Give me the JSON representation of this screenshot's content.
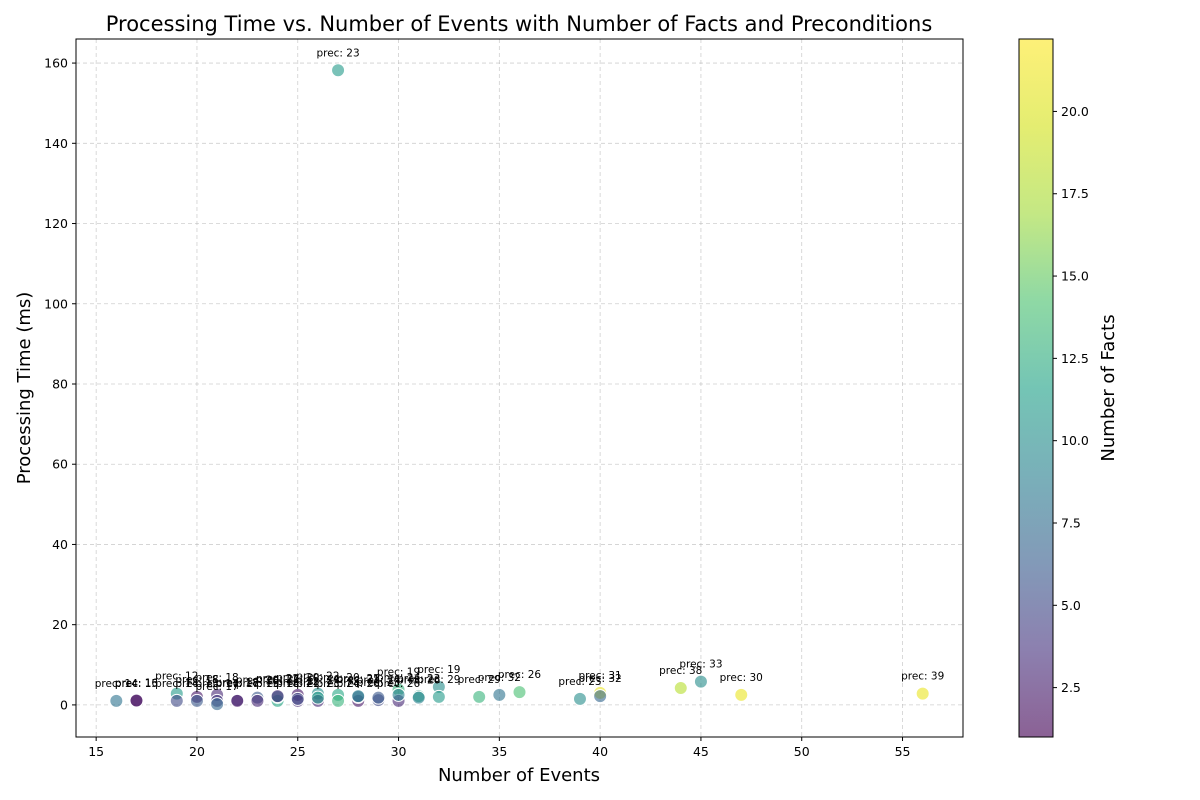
{
  "chart_data": {
    "type": "scatter",
    "title": "Processing Time vs. Number of Events with Number of Facts and Preconditions",
    "xlabel": "Number of Events",
    "ylabel": "Processing Time (ms)",
    "xlim": [
      14,
      58
    ],
    "ylim": [
      -8,
      166
    ],
    "xticks": [
      15,
      20,
      25,
      30,
      35,
      40,
      45,
      50,
      55
    ],
    "yticks": [
      0,
      20,
      40,
      60,
      80,
      100,
      120,
      140,
      160
    ],
    "grid": true,
    "colorbar": {
      "label": "Number of Facts",
      "min": 1,
      "max": 22.2,
      "ticks": [
        2.5,
        5.0,
        7.5,
        10.0,
        12.5,
        15.0,
        17.5,
        20.0
      ],
      "tick_labels": [
        "2.5",
        "5.0",
        "7.5",
        "10.0",
        "12.5",
        "15.0",
        "17.5",
        "20.0"
      ],
      "colormap": "viridis"
    },
    "label_prefix": "prec: ",
    "points": [
      {
        "x": 16,
        "y": 1.0,
        "facts": 8,
        "prec": 14
      },
      {
        "x": 17,
        "y": 1.0,
        "facts": 1,
        "prec": 15
      },
      {
        "x": 17,
        "y": 1.1,
        "facts": 2,
        "prec": 16
      },
      {
        "x": 19,
        "y": 2.8,
        "facts": 11,
        "prec": 12
      },
      {
        "x": 19,
        "y": 1.0,
        "facts": 5,
        "prec": 14
      },
      {
        "x": 20,
        "y": 2.0,
        "facts": 2,
        "prec": 18
      },
      {
        "x": 20,
        "y": 1.0,
        "facts": 6,
        "prec": 15
      },
      {
        "x": 21,
        "y": 2.5,
        "facts": 3,
        "prec": 18
      },
      {
        "x": 21,
        "y": 1.0,
        "facts": 4,
        "prec": 17
      },
      {
        "x": 21,
        "y": 0.2,
        "facts": 7,
        "prec": 17
      },
      {
        "x": 22,
        "y": 1.2,
        "facts": 4,
        "prec": 18
      },
      {
        "x": 22,
        "y": 1.0,
        "facts": 2,
        "prec": 17
      },
      {
        "x": 23,
        "y": 1.8,
        "facts": 6,
        "prec": 20
      },
      {
        "x": 23,
        "y": 1.0,
        "facts": 3,
        "prec": 19
      },
      {
        "x": 24,
        "y": 1.0,
        "facts": 12,
        "prec": 18
      },
      {
        "x": 24,
        "y": 2.0,
        "facts": 9,
        "prec": 21
      },
      {
        "x": 24,
        "y": 2.2,
        "facts": 3,
        "prec": 22
      },
      {
        "x": 25,
        "y": 2.5,
        "facts": 2,
        "prec": 20
      },
      {
        "x": 25,
        "y": 1.0,
        "facts": 3,
        "prec": 21
      },
      {
        "x": 25,
        "y": 1.5,
        "facts": 5,
        "prec": 22
      },
      {
        "x": 26,
        "y": 2.8,
        "facts": 10,
        "prec": 22
      },
      {
        "x": 26,
        "y": 1.0,
        "facts": 3,
        "prec": 23
      },
      {
        "x": 26,
        "y": 1.8,
        "facts": 11,
        "prec": 24
      },
      {
        "x": 27,
        "y": 158.2,
        "facts": 11,
        "prec": 23
      },
      {
        "x": 27,
        "y": 2.5,
        "facts": 12,
        "prec": 20
      },
      {
        "x": 27,
        "y": 1.0,
        "facts": 13,
        "prec": 24
      },
      {
        "x": 28,
        "y": 1.0,
        "facts": 2,
        "prec": 20
      },
      {
        "x": 28,
        "y": 2.0,
        "facts": 6,
        "prec": 21
      },
      {
        "x": 28,
        "y": 2.2,
        "facts": 9,
        "prec": 25
      },
      {
        "x": 29,
        "y": 1.2,
        "facts": 5,
        "prec": 23
      },
      {
        "x": 29,
        "y": 1.8,
        "facts": 6,
        "prec": 24
      },
      {
        "x": 30,
        "y": 3.8,
        "facts": 13,
        "prec": 19
      },
      {
        "x": 30,
        "y": 1.0,
        "facts": 3,
        "prec": 26
      },
      {
        "x": 30,
        "y": 2.5,
        "facts": 9,
        "prec": 24
      },
      {
        "x": 31,
        "y": 2.2,
        "facts": 12,
        "prec": 23
      },
      {
        "x": 31,
        "y": 1.8,
        "facts": 9,
        "prec": 26
      },
      {
        "x": 32,
        "y": 4.5,
        "facts": 10,
        "prec": 19
      },
      {
        "x": 32,
        "y": 2.0,
        "facts": 11,
        "prec": 29
      },
      {
        "x": 34,
        "y": 2.0,
        "facts": 13,
        "prec": 29
      },
      {
        "x": 35,
        "y": 2.5,
        "facts": 8,
        "prec": 32
      },
      {
        "x": 36,
        "y": 3.2,
        "facts": 14,
        "prec": 26
      },
      {
        "x": 39,
        "y": 1.5,
        "facts": 10,
        "prec": 23
      },
      {
        "x": 40,
        "y": 3.0,
        "facts": 21,
        "prec": 31
      },
      {
        "x": 40,
        "y": 2.2,
        "facts": 7,
        "prec": 32
      },
      {
        "x": 44,
        "y": 4.2,
        "facts": 18,
        "prec": 38
      },
      {
        "x": 45,
        "y": 5.8,
        "facts": 10,
        "prec": 33
      },
      {
        "x": 47,
        "y": 2.5,
        "facts": 21,
        "prec": 30
      },
      {
        "x": 56,
        "y": 2.8,
        "facts": 21,
        "prec": 39
      }
    ]
  }
}
